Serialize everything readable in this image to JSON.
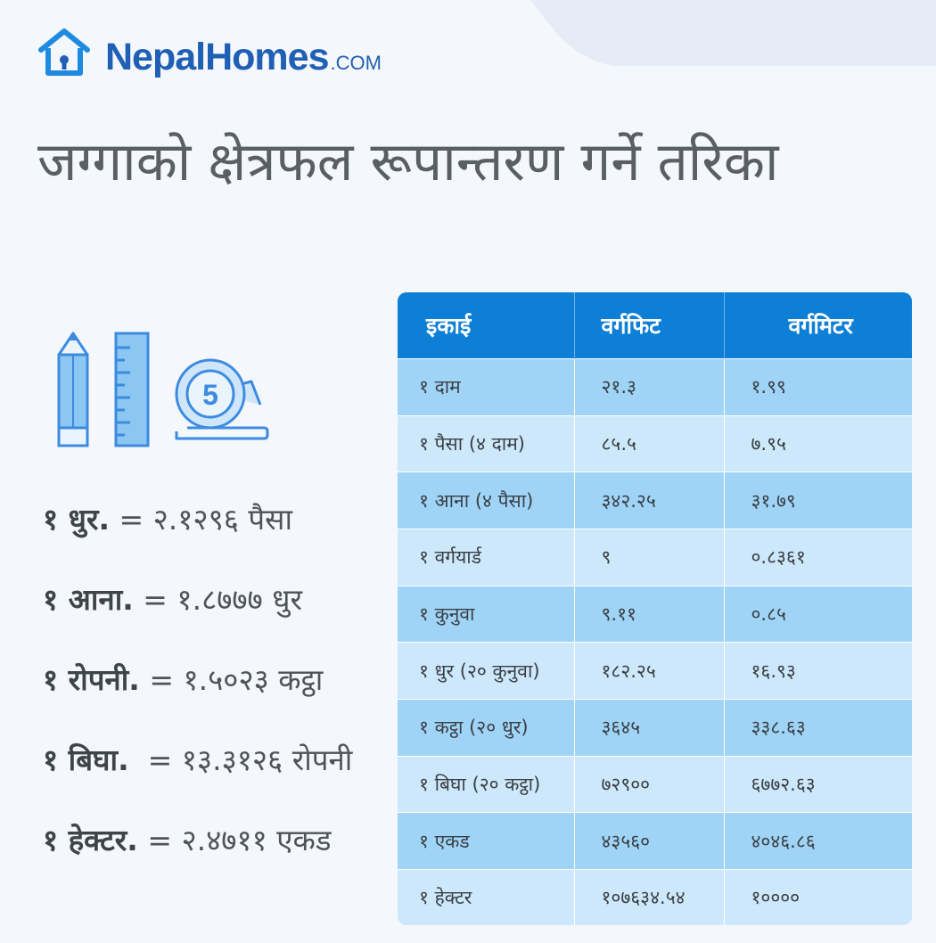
{
  "brand": {
    "name": "NepalHomes",
    "suffix": ".COM",
    "color": "#1f5fb4",
    "icon": "house-icon"
  },
  "title": "जग्गाको क्षेत्रफल रूपान्तरण गर्ने तरिका",
  "illustration": {
    "icons": [
      "pencil-icon",
      "ruler-icon",
      "measuring-tape-icon"
    ],
    "tape_number": "5"
  },
  "formulas": [
    {
      "unit": "१ धुर.",
      "equals": "= २.१२९६ पैसा"
    },
    {
      "unit": "१ आना.",
      "equals": "= १.८७७७ धुर"
    },
    {
      "unit": "१ रोपनी.",
      "equals": "= १.५०२३ कट्ठा"
    },
    {
      "unit": "१ बिघा.",
      "equals": " = १३.३१२६ रोपनी"
    },
    {
      "unit": "१ हेक्टर.",
      "equals": "= २.४७११ एकड"
    }
  ],
  "table": {
    "header_color": "#0e7fd6",
    "headers": [
      "इकाई",
      "वर्गफिट",
      "वर्गमिटर"
    ],
    "rows": [
      [
        "१ दाम",
        "२१.३",
        "१.९९"
      ],
      [
        "१ पैसा (४ दाम)",
        "८५.५",
        "७.९५"
      ],
      [
        "१ आना (४ पैसा)",
        "३४२.२५",
        "३१.७९"
      ],
      [
        "१ वर्गयार्ड",
        "९",
        "०.८३६१"
      ],
      [
        "१ कुनुवा",
        "९.११",
        "०.८५"
      ],
      [
        "१ धुर (२० कुनुवा)",
        "१८२.२५",
        "१६.९३"
      ],
      [
        "१ कट्ठा (२० धुर)",
        "३६४५",
        "३३८.६३"
      ],
      [
        "१ बिघा (२० कट्ठा)",
        "७२९००",
        "६७७२.६३"
      ],
      [
        "१ एकड",
        "४३५६०",
        "४०४६.८६"
      ],
      [
        "१ हेक्टर",
        "१०७६३४.५४",
        "१००००"
      ]
    ]
  }
}
